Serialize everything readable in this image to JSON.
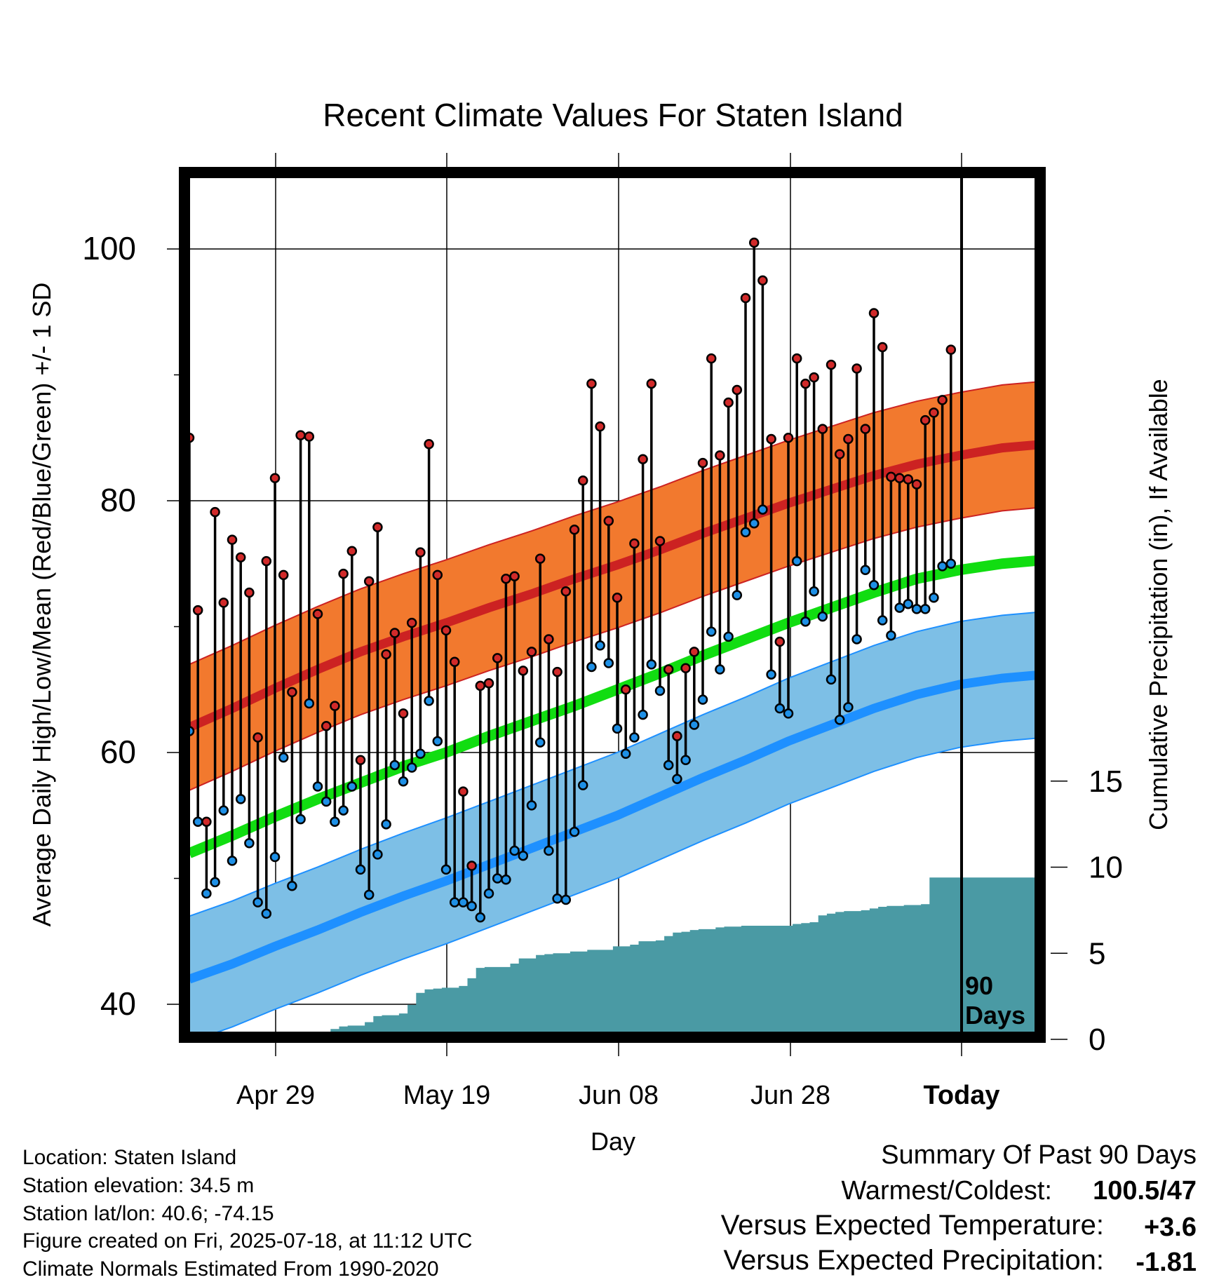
{
  "chart_data": {
    "type": "line",
    "title": "Recent Climate Values For Staten Island",
    "xlabel": "Day",
    "ylabel": "Average Daily High/Low/Mean (Red/Blue/Green) +/- 1 SD",
    "y2label": "Cumulative Precipitation (in), If Available",
    "x_ticks": [
      "Apr 29",
      "May 19",
      "Jun 08",
      "Jun 28",
      "Today"
    ],
    "y_ticks": [
      40,
      60,
      80,
      100
    ],
    "y2_ticks": [
      0,
      5,
      10,
      15
    ],
    "ylim": [
      37,
      105
    ],
    "y2lim": [
      0,
      50
    ],
    "today_label": [
      "90",
      "Days"
    ],
    "colors": {
      "high": "#cc2222",
      "high_band": "#f2792e",
      "low": "#1e90ff",
      "low_band": "#7dbfe6",
      "mean": "#11dd11",
      "precip": "#4a9aa4",
      "high_point": "#d12a2a",
      "low_point": "#1e90e6"
    },
    "series": [
      {
        "name": "Daily High",
        "values": [
          85,
          71.3,
          54.5,
          79.1,
          71.9,
          76.9,
          75.5,
          72.7,
          61.2,
          75.2,
          81.8,
          74.1,
          64.8,
          85.2,
          85.1,
          71,
          62.1,
          63.7,
          74.2,
          76,
          59.4,
          73.6,
          77.9,
          67.8,
          69.5,
          63.1,
          70.3,
          75.9,
          84.5,
          74.1,
          69.7,
          67.2,
          56.9,
          51,
          65.3,
          65.5,
          67.5,
          73.8,
          74,
          66.5,
          68,
          75.4,
          69,
          66.4,
          72.8,
          77.7,
          81.6,
          89.3,
          85.9,
          78.4,
          72.3,
          65,
          76.6,
          83.3,
          89.3,
          76.8,
          66.6,
          61.3,
          66.7,
          68,
          83,
          91.3,
          83.6,
          87.8,
          88.8,
          96.1,
          100.5,
          97.5,
          84.9,
          68.8,
          85,
          91.3,
          89.3,
          89.8,
          85.7,
          90.8,
          83.7,
          84.9,
          90.5,
          85.7,
          94.9,
          92.2,
          81.9,
          81.8,
          81.7,
          81.3,
          86.4,
          87,
          88,
          92
        ]
      },
      {
        "name": "Daily Low",
        "values": [
          61.7,
          54.5,
          48.8,
          49.7,
          55.4,
          51.4,
          56.3,
          52.8,
          48.1,
          47.2,
          51.7,
          59.6,
          49.4,
          54.7,
          63.9,
          57.3,
          56.1,
          54.5,
          55.4,
          57.3,
          50.7,
          48.7,
          51.9,
          54.3,
          59,
          57.7,
          58.8,
          59.9,
          64.1,
          60.9,
          50.7,
          48.1,
          48.1,
          47.8,
          46.9,
          48.8,
          50,
          49.9,
          52.2,
          51.8,
          55.8,
          60.8,
          52.2,
          48.4,
          48.3,
          53.7,
          57.4,
          66.8,
          68.5,
          67.1,
          61.9,
          59.9,
          61.2,
          63,
          67,
          64.9,
          59,
          57.9,
          59.4,
          62.2,
          64.2,
          69.6,
          66.6,
          69.2,
          72.5,
          77.5,
          78.2,
          79.3,
          66.2,
          63.5,
          63.1,
          75.2,
          70.4,
          72.8,
          70.8,
          65.8,
          62.6,
          63.6,
          69,
          74.5,
          73.3,
          70.5,
          69.3,
          71.5,
          71.8,
          71.4,
          71.4,
          72.3,
          74.8,
          75
        ]
      },
      {
        "name": "Normal High",
        "values": [
          62,
          63.5,
          65.1,
          66.6,
          68,
          69.2,
          70.3,
          71.5,
          72.6,
          73.8,
          74.9,
          76.1,
          77.4,
          78.6,
          79.8,
          80.9,
          82,
          82.9,
          83.6,
          84.2,
          84.5,
          84.6,
          84.5
        ]
      },
      {
        "name": "Normal Low",
        "values": [
          42,
          43.2,
          44.6,
          45.9,
          47.3,
          48.6,
          49.8,
          51.1,
          52.4,
          53.7,
          55,
          56.5,
          58,
          59.4,
          60.9,
          62.2,
          63.5,
          64.6,
          65.4,
          65.9,
          66.2,
          66.3,
          66.3
        ]
      },
      {
        "name": "Normal Mean",
        "values": [
          52,
          53.4,
          54.9,
          56.3,
          57.6,
          58.9,
          60,
          61.3,
          62.5,
          63.7,
          65,
          66.3,
          67.7,
          69,
          70.3,
          71.5,
          72.7,
          73.8,
          74.5,
          75,
          75.3,
          75.4,
          75.3
        ]
      },
      {
        "name": "Cumulative Precipitation",
        "values": [
          0,
          0,
          0,
          0,
          0,
          0,
          0,
          0,
          0,
          0,
          0,
          0,
          0,
          0,
          0,
          0,
          0.35,
          0.6,
          0.75,
          0.8,
          0.8,
          1.0,
          1.35,
          1.4,
          1.4,
          1.5,
          2.0,
          2.7,
          2.9,
          2.95,
          3.0,
          3.0,
          3.1,
          3.55,
          4.15,
          4.2,
          4.2,
          4.2,
          4.4,
          4.7,
          4.7,
          4.9,
          4.95,
          5.0,
          5.0,
          5.1,
          5.1,
          5.2,
          5.2,
          5.2,
          5.4,
          5.4,
          5.5,
          5.7,
          5.7,
          5.75,
          6.0,
          6.2,
          6.25,
          6.35,
          6.4,
          6.4,
          6.5,
          6.55,
          6.55,
          6.6,
          6.6,
          6.6,
          6.6,
          6.6,
          6.6,
          6.7,
          6.75,
          6.8,
          7.2,
          7.3,
          7.4,
          7.45,
          7.45,
          7.5,
          7.6,
          7.7,
          7.75,
          7.75,
          7.8,
          7.8,
          7.85,
          9.4,
          9.4,
          9.4,
          9.4
        ]
      }
    ],
    "normals_x_step_days": 5
  },
  "location_info": {
    "location": "Location: Staten Island",
    "elevation": "Station elevation: 34.5 m",
    "latlon": "Station lat/lon: 40.6; -74.15",
    "created": "Figure created on Fri, 2025-07-18, at 11:12 UTC",
    "normals": "Climate Normals Estimated From 1990-2020"
  },
  "summary": {
    "heading": "Summary Of Past 90 Days",
    "warm_cold_label": "Warmest/Coldest:",
    "warm_cold_value": "100.5/47",
    "temp_label": "Versus Expected Temperature:",
    "temp_value": "+3.6",
    "temp_color": "#cc2222",
    "precip_label": "Versus Expected Precipitation:",
    "precip_value": "-1.81",
    "precip_color": "#a0522d"
  }
}
